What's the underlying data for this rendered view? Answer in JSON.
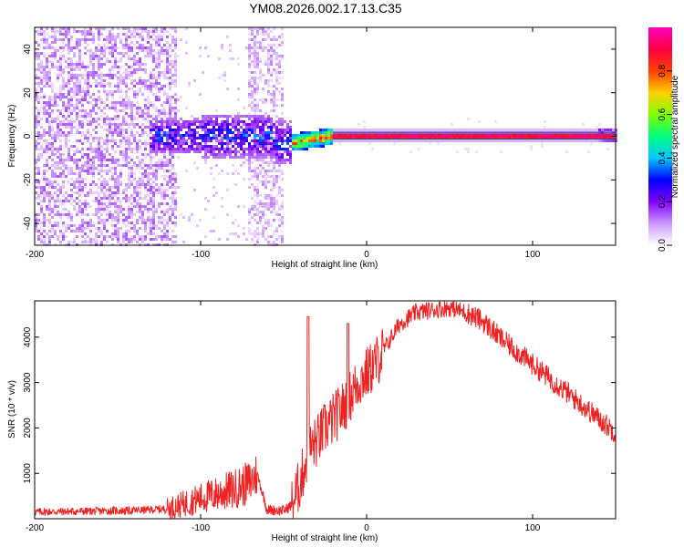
{
  "figure_title": "YM08.2026.002.17.13.C35",
  "chart_data": [
    {
      "type": "heatmap",
      "title": "YM08.2026.002.17.13.C35",
      "xlabel": "Height of straight line (km)",
      "ylabel": "Frequency (Hz)",
      "xlim": [
        -200,
        150
      ],
      "ylim": [
        -50,
        50
      ],
      "xticks": [
        -200,
        -100,
        0,
        100
      ],
      "yticks": [
        -40,
        -20,
        0,
        20,
        40
      ],
      "colorbar": {
        "label": "Normalized spectral amplitude",
        "range": [
          0,
          1
        ],
        "ticks": [
          0.0,
          0.2,
          0.4,
          0.6,
          0.8
        ],
        "colors": [
          "#ffffff",
          "#cc99ff",
          "#8000ff",
          "#0000ff",
          "#00c8ff",
          "#00ff80",
          "#80ff00",
          "#ffd000",
          "#ff4000",
          "#ff0040",
          "#ff00c0"
        ]
      },
      "regions": [
        {
          "name": "diffuse_noise",
          "x": [
            -200,
            -115
          ],
          "freq": [
            -50,
            50
          ],
          "amplitude": 0.05
        },
        {
          "name": "noise_band",
          "x": [
            -72,
            -50
          ],
          "freq": [
            -50,
            50
          ],
          "amplitude": 0.04
        },
        {
          "name": "signal_onset",
          "x": [
            -130,
            -45
          ],
          "freq": [
            -12,
            12
          ],
          "amplitude": 0.2
        },
        {
          "name": "carrier_line",
          "x": [
            -20,
            150
          ],
          "freq": [
            -1,
            1
          ],
          "amplitude": 0.95
        }
      ]
    },
    {
      "type": "line",
      "xlabel": "Height of straight line (km)",
      "ylabel": "SNR (10 * v/v)",
      "xlim": [
        -200,
        150
      ],
      "ylim": [
        0,
        4800
      ],
      "xticks": [
        -200,
        -100,
        0,
        100
      ],
      "yticks": [
        1000,
        2000,
        3000,
        4000
      ],
      "color": "#ee2222",
      "series": [
        {
          "name": "SNR",
          "x": [
            -200,
            -180,
            -160,
            -140,
            -120,
            -110,
            -100,
            -90,
            -80,
            -70,
            -66,
            -60,
            -50,
            -45,
            -40,
            -35,
            -30,
            -25,
            -20,
            -15,
            -10,
            -5,
            0,
            5,
            10,
            20,
            30,
            40,
            50,
            60,
            70,
            80,
            90,
            100,
            110,
            120,
            130,
            140,
            150
          ],
          "values": [
            150,
            160,
            170,
            180,
            220,
            330,
            450,
            550,
            650,
            800,
            1000,
            200,
            180,
            300,
            800,
            1500,
            1700,
            2000,
            2200,
            2400,
            2700,
            3000,
            3200,
            3400,
            3700,
            4300,
            4550,
            4600,
            4650,
            4550,
            4350,
            4000,
            3700,
            3400,
            3100,
            2800,
            2500,
            2200,
            1900
          ]
        }
      ]
    }
  ]
}
